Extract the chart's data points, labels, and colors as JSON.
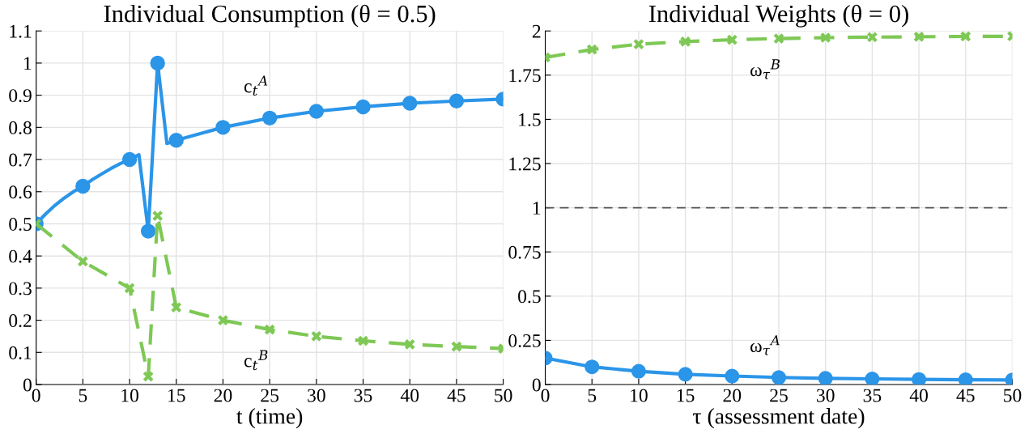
{
  "chart_data": [
    {
      "type": "line",
      "title": "Individual Consumption (θ = 0.5)",
      "xlabel": "t (time)",
      "xlim": [
        0,
        50
      ],
      "xticks": [
        0,
        5,
        10,
        15,
        20,
        25,
        30,
        35,
        40,
        45,
        50
      ],
      "ylim": [
        0,
        1.1
      ],
      "yticks": [
        0,
        0.1,
        0.2,
        0.3,
        0.4,
        0.5,
        0.6,
        0.7,
        0.8,
        0.9,
        1,
        1.1
      ],
      "grid": true,
      "series": [
        {
          "name": "c$_{t}$$^{A}$",
          "color": "#2b95e8",
          "line_style": "solid",
          "marker": "none",
          "x": [
            0,
            1,
            2,
            3,
            4,
            5,
            6,
            7,
            8,
            9,
            10,
            11,
            12,
            13,
            14,
            15,
            20,
            25,
            30,
            35,
            40,
            45,
            50
          ],
          "values": [
            0.5,
            0.53,
            0.557,
            0.58,
            0.6,
            0.617,
            0.637,
            0.655,
            0.672,
            0.687,
            0.7,
            0.715,
            0.477,
            1.0,
            0.75,
            0.76,
            0.8,
            0.829,
            0.85,
            0.864,
            0.875,
            0.882,
            0.888
          ]
        },
        {
          "type": "scatter",
          "color": "#2b95e8",
          "marker": "circle",
          "x": [
            0,
            5,
            10,
            12,
            13,
            15,
            20,
            25,
            30,
            35,
            40,
            45,
            50
          ],
          "values": [
            0.5,
            0.617,
            0.7,
            0.477,
            1.0,
            0.76,
            0.8,
            0.829,
            0.85,
            0.864,
            0.875,
            0.882,
            0.888
          ]
        },
        {
          "name": "c$_{t}$$^{B}$",
          "color": "#7ec855",
          "line_style": "dashed",
          "marker": "cross",
          "x": [
            0,
            5,
            10,
            12,
            13,
            15,
            20,
            25,
            30,
            35,
            40,
            45,
            50
          ],
          "values": [
            0.5,
            0.383,
            0.3,
            0.025,
            0.525,
            0.24,
            0.2,
            0.171,
            0.15,
            0.136,
            0.125,
            0.118,
            0.112
          ]
        }
      ]
    },
    {
      "type": "line",
      "title": "Individual Weights (θ = 0)",
      "xlabel": "τ (assessment date)",
      "xlim": [
        0,
        50
      ],
      "xticks": [
        0,
        5,
        10,
        15,
        20,
        25,
        30,
        35,
        40,
        45,
        50
      ],
      "ylim": [
        0,
        2
      ],
      "yticks": [
        0,
        0.25,
        0.5,
        0.75,
        1,
        1.25,
        1.5,
        1.75,
        2
      ],
      "grid": true,
      "series": [
        {
          "name": "ω$_{τ}$$^{B}$",
          "color": "#7ec855",
          "line_style": "dashed",
          "marker": "cross",
          "x": [
            0,
            5,
            10,
            15,
            20,
            25,
            30,
            35,
            40,
            45,
            50
          ],
          "values": [
            1.85,
            1.895,
            1.925,
            1.94,
            1.95,
            1.957,
            1.962,
            1.965,
            1.967,
            1.969,
            1.97
          ]
        },
        {
          "name": "ω$_{τ}$$^{A}$",
          "color": "#2b95e8",
          "line_style": "solid",
          "marker": "circle",
          "x": [
            0,
            5,
            10,
            15,
            20,
            25,
            30,
            35,
            40,
            45,
            50
          ],
          "values": [
            0.15,
            0.1,
            0.075,
            0.058,
            0.048,
            0.04,
            0.035,
            0.032,
            0.029,
            0.027,
            0.026
          ]
        }
      ],
      "ref_lines": [
        {
          "axis": "y",
          "value": 1,
          "color": "#555555",
          "line_style": "dashed"
        }
      ]
    }
  ]
}
